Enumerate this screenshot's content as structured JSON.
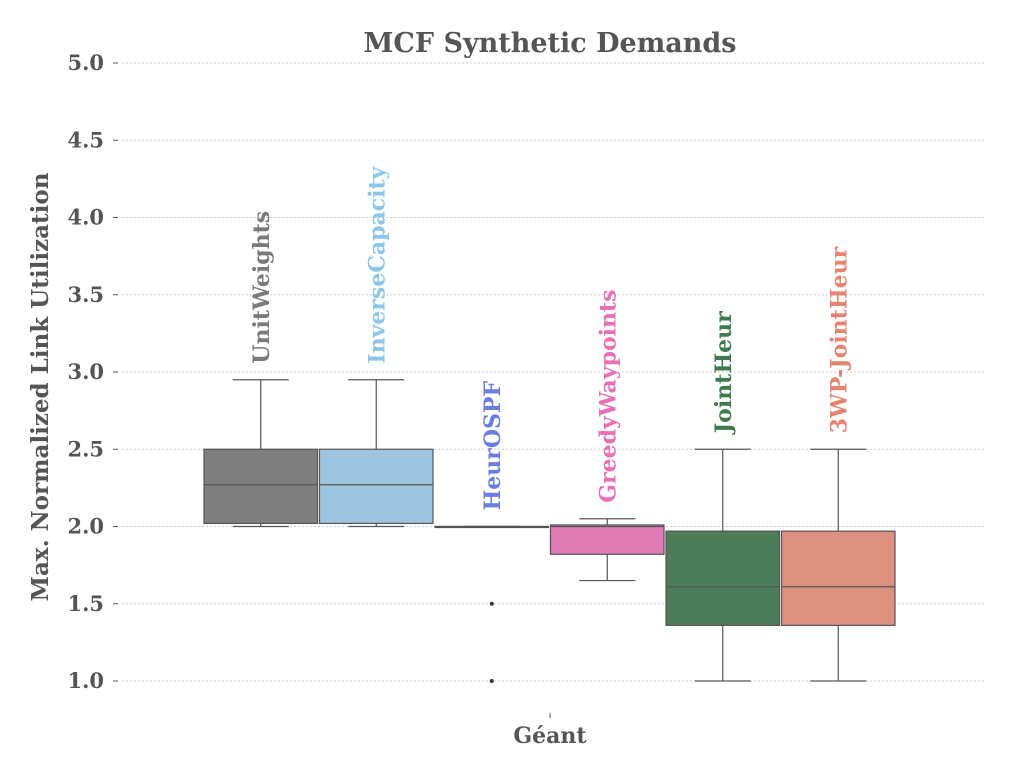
{
  "chart_data": {
    "type": "boxplot",
    "title": "MCF Synthetic Demands",
    "xlabel": "",
    "ylabel": "Max. Normalized Link Utilization",
    "categories": [
      "Géant"
    ],
    "ylim": [
      1.0,
      5.0
    ],
    "yticks": [
      "1.0",
      "1.5",
      "2.0",
      "2.5",
      "3.0",
      "3.5",
      "4.0",
      "4.5",
      "5.0"
    ],
    "grid": true,
    "series": [
      {
        "name": "UnitWeights",
        "color": "#7f7f7f",
        "label_color": "#7a7a7a",
        "whisker_low": 2.0,
        "q1": 2.02,
        "median": 2.27,
        "q3": 2.5,
        "whisker_high": 2.95,
        "outliers": []
      },
      {
        "name": "InverseCapacity",
        "color": "#9ec5e0",
        "label_color": "#8dc6e8",
        "whisker_low": 2.0,
        "q1": 2.02,
        "median": 2.27,
        "q3": 2.5,
        "whisker_high": 2.95,
        "outliers": []
      },
      {
        "name": "HeurOSPF",
        "color": "#6677dd",
        "label_color": "#6a7de0",
        "whisker_low": 2.0,
        "q1": 2.0,
        "median": 2.0,
        "q3": 2.0,
        "whisker_high": 2.0,
        "outliers": [
          1.5,
          1.0
        ]
      },
      {
        "name": "GreedyWaypoints",
        "color": "#e07bb5",
        "label_color": "#e870b4",
        "whisker_low": 1.65,
        "q1": 1.82,
        "median": 2.0,
        "q3": 2.01,
        "whisker_high": 2.05,
        "outliers": []
      },
      {
        "name": "JointHeur",
        "color": "#4c7d58",
        "label_color": "#3f7a4e",
        "whisker_low": 1.0,
        "q1": 1.36,
        "median": 1.61,
        "q3": 1.97,
        "whisker_high": 2.5,
        "outliers": []
      },
      {
        "name": "3WP-JointHeur",
        "color": "#dc9080",
        "label_color": "#e58471",
        "whisker_low": 1.0,
        "q1": 1.36,
        "median": 1.61,
        "q3": 1.97,
        "whisker_high": 2.5,
        "outliers": []
      }
    ]
  }
}
